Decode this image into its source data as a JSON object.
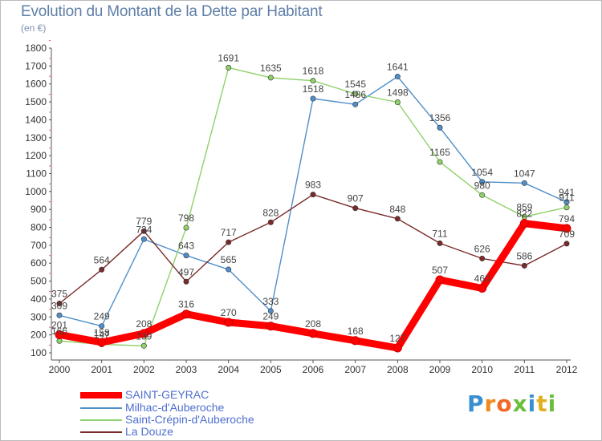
{
  "chart_data": {
    "type": "line",
    "title": "Evolution du Montant de la Dette par Habitant",
    "subtitle": "(en €)",
    "x": [
      "2000",
      "2001",
      "2002",
      "2003",
      "2004",
      "2005",
      "2006",
      "2007",
      "2008",
      "2009",
      "2010",
      "2011",
      "2012"
    ],
    "ylim": [
      100,
      1800
    ],
    "yticks": [
      100,
      200,
      300,
      400,
      500,
      600,
      700,
      800,
      900,
      1000,
      1100,
      1200,
      1300,
      1400,
      1500,
      1600,
      1700,
      1800
    ],
    "grid": false,
    "legend_position": "bottom-left",
    "series": [
      {
        "name": "SAINT-GEYRAC",
        "color": "#ff0000",
        "values": [
          201,
          158,
          208,
          316,
          270,
          249,
          208,
          168,
          127,
          507,
          460,
          822,
          794
        ]
      },
      {
        "name": "Milhac-d'Auberoche",
        "color": "#4f8fca",
        "values": [
          309,
          249,
          734,
          643,
          565,
          333,
          1518,
          1486,
          1641,
          1356,
          1054,
          1047,
          941
        ]
      },
      {
        "name": "Saint-Crépin-d'Auberoche",
        "color": "#8fd16a",
        "values": [
          166,
          147,
          139,
          798,
          1691,
          1635,
          1618,
          1545,
          1498,
          1165,
          980,
          859,
          911
        ]
      },
      {
        "name": "La Douze",
        "color": "#7a2a2a",
        "values": [
          375,
          564,
          779,
          497,
          717,
          828,
          983,
          907,
          848,
          711,
          626,
          586,
          709
        ]
      }
    ]
  },
  "logo": {
    "text": "Proxiti"
  }
}
